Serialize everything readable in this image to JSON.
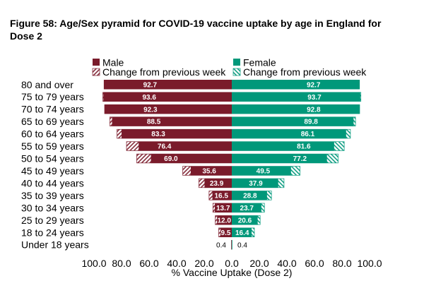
{
  "chart_data": {
    "type": "bar",
    "subtype": "pyramid",
    "title": "Figure 58: Age/Sex pyramid for COVID-19 vaccine uptake by age in England for Dose 2",
    "xlabel": "% Vaccine Uptake (Dose 2)",
    "xlim": [
      0,
      100
    ],
    "x_tick_labels": [
      "100.0",
      "80.0",
      "60.0",
      "40.0",
      "20.0",
      "0.0",
      "20.0",
      "40.0",
      "60.0",
      "80.0",
      "100.0"
    ],
    "grid": false,
    "legend_position": "top",
    "categories": [
      "80 and over",
      "75 to 79 years",
      "70 to 74 years",
      "65 to 69 years",
      "60 to 64 years",
      "55 to 59 years",
      "50 to 54 years",
      "45 to 49 years",
      "40 to 44 years",
      "35 to 39 years",
      "30 to 34 years",
      "25 to 29 years",
      "18 to 24 years",
      "Under 18 years"
    ],
    "series": [
      {
        "name": "Male",
        "side": "left",
        "style": "solid",
        "color": "#7a1b2b",
        "values": [
          92.7,
          93.6,
          92.3,
          88.5,
          83.3,
          76.4,
          69.0,
          35.6,
          23.9,
          16.5,
          13.7,
          12.0,
          9.5,
          0.4
        ]
      },
      {
        "name": "Female",
        "side": "right",
        "style": "solid",
        "color": "#00987a",
        "values": [
          92.7,
          93.7,
          92.8,
          89.8,
          86.1,
          81.6,
          77.2,
          49.5,
          37.9,
          28.8,
          23.7,
          20.6,
          16.4,
          0.4
        ]
      },
      {
        "name": "Change from previous week",
        "side": "left",
        "style": "hatched",
        "color": "#7a1b2b",
        "values": [
          0.1,
          0.6,
          0.3,
          1.8,
          3.5,
          9.0,
          10.5,
          6.0,
          4.3,
          2.6,
          1.6,
          1.5,
          1.5,
          0.0
        ]
      },
      {
        "name": "Change from previous week",
        "side": "right",
        "style": "hatched",
        "color": "#00987a",
        "values": [
          0.1,
          0.6,
          0.3,
          1.6,
          3.3,
          7.5,
          8.3,
          6.7,
          4.4,
          3.4,
          2.4,
          2.0,
          2.2,
          0.0
        ]
      }
    ]
  }
}
